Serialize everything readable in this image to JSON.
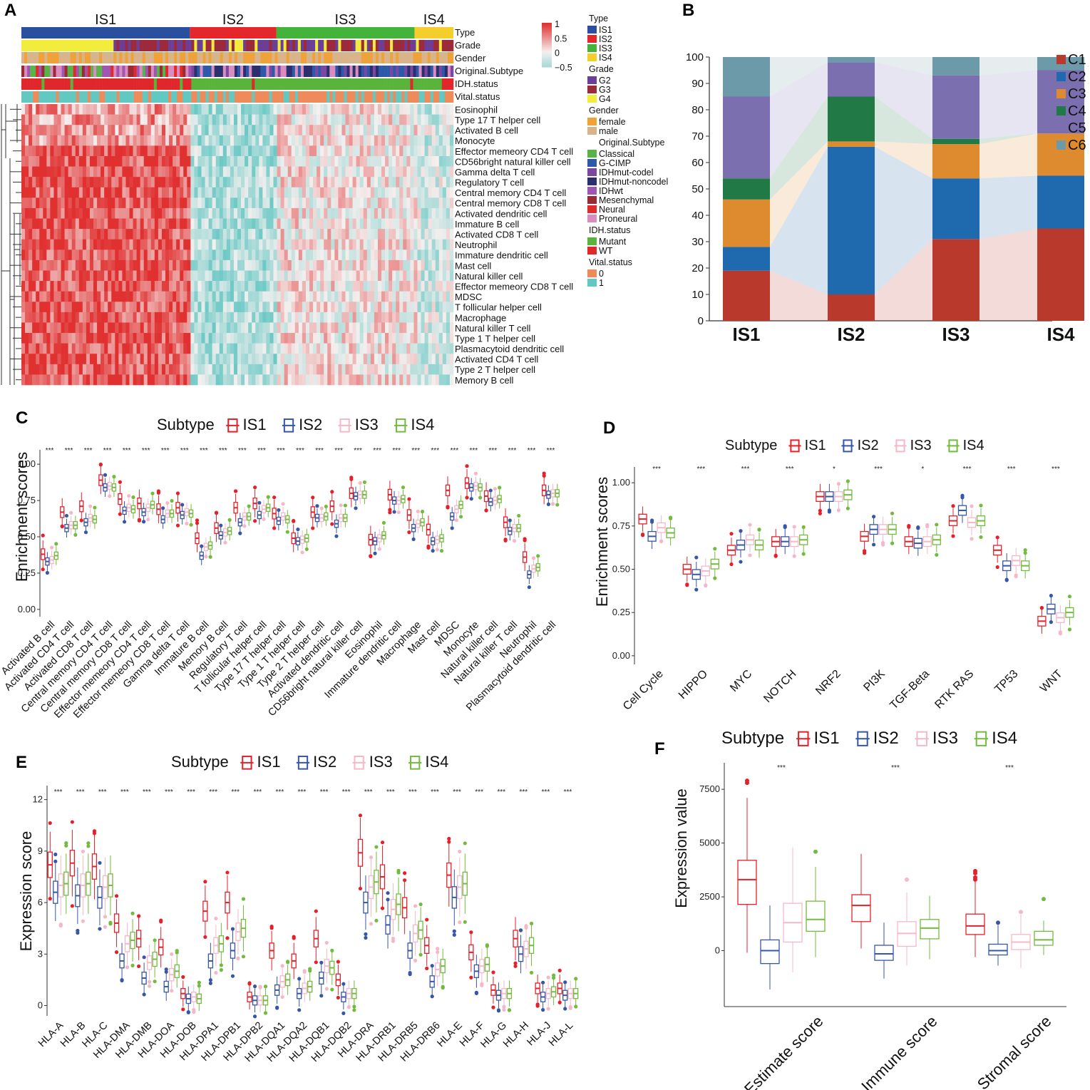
{
  "panels": {
    "A": "A",
    "B": "B",
    "C": "C",
    "D": "D",
    "E": "E",
    "F": "F"
  },
  "colors": {
    "IS1": "#e5202a",
    "IS2": "#3656a6",
    "IS3": "#f5b8c8",
    "IS4": "#72bb3f",
    "hm_high": "#e03030",
    "hm_mid": "#f4f0ef",
    "hm_low": "#5cc4c0"
  },
  "heatmap": {
    "groups": [
      "IS1",
      "IS2",
      "IS3",
      "IS4"
    ],
    "group_fraction": [
      0.39,
      0.2,
      0.32,
      0.09
    ],
    "group_colors": [
      "#2a4fa0",
      "#e5262b",
      "#45b23c",
      "#f4cf2b"
    ],
    "annotation_rows": [
      "Type",
      "Grade",
      "Gender",
      "Original.Subtype",
      "IDH.status",
      "Vital.status"
    ],
    "cell_rows": [
      "Eosinophil",
      "Type 17 T helper cell",
      "Activated B cell",
      "Monocyte",
      "Effector memeory CD4 T cell",
      "CD56bright natural killer cell",
      "Gamma delta T cell",
      "Regulatory T cell",
      "Central memory CD4 T cell",
      "Central memory CD8 T cell",
      "Activated dendritic cell",
      "Immature  B cell",
      "Activated CD8 T cell",
      "Neutrophil",
      "Immature dendritic cell",
      "Mast cell",
      "Natural killer cell",
      "Effector memeory CD8 T cell",
      "MDSC",
      "T follicular helper cell",
      "Macrophage",
      "Natural killer T cell",
      "Type 1 T helper cell",
      "Plasmacytoid dendritic cell",
      "Activated CD4 T cell",
      "Type 2 T helper cell",
      "Memory B cell"
    ],
    "colorbar": {
      "ticks": [
        "1",
        "0.5",
        "0",
        "−0.5"
      ]
    },
    "legend": [
      {
        "title": "Type",
        "items": [
          {
            "label": "IS1",
            "color": "#2a4fa0"
          },
          {
            "label": "IS2",
            "color": "#e5262b"
          },
          {
            "label": "IS3",
            "color": "#45b23c"
          },
          {
            "label": "IS4",
            "color": "#f4cf2b"
          }
        ]
      },
      {
        "title": "Grade",
        "items": [
          {
            "label": "G2",
            "color": "#6b3f98"
          },
          {
            "label": "G3",
            "color": "#9c2a3a"
          },
          {
            "label": "G4",
            "color": "#f2ec3c"
          }
        ]
      },
      {
        "title": "Gender",
        "items": [
          {
            "label": "female",
            "color": "#f0a23a"
          },
          {
            "label": "male",
            "color": "#d8b48a"
          }
        ]
      },
      {
        "title": "Original.Subtype",
        "items": [
          {
            "label": "Classical",
            "color": "#58b44a"
          },
          {
            "label": "G-CIMP",
            "color": "#2c5aa8"
          },
          {
            "label": "IDHmut-codel",
            "color": "#7a48a0"
          },
          {
            "label": "IDHmut-noncodel",
            "color": "#2b2f6e"
          },
          {
            "label": "IDHwt",
            "color": "#a056b0"
          },
          {
            "label": "Mesenchymal",
            "color": "#9a2b34"
          },
          {
            "label": "Neural",
            "color": "#e22a2a"
          },
          {
            "label": "Proneural",
            "color": "#d98cc0"
          }
        ]
      },
      {
        "title": "IDH.status",
        "items": [
          {
            "label": "Mutant",
            "color": "#5ab43c"
          },
          {
            "label": "WT",
            "color": "#e0282c"
          }
        ]
      },
      {
        "title": "Vital.status",
        "items": [
          {
            "label": "0",
            "color": "#ef8a5a"
          },
          {
            "label": "1",
            "color": "#62c8c2"
          }
        ]
      }
    ]
  },
  "chart_data": [
    {
      "panel": "A",
      "type": "heatmap",
      "title": "",
      "note": "Immune cell enrichment heatmap; high in IS1, low in IS2 and IS4, intermediate in IS3",
      "rows_ref": "heatmap.cell_rows",
      "group_mean_values": [
        0.8,
        -0.45,
        0.05,
        -0.25
      ]
    },
    {
      "panel": "B",
      "type": "bar",
      "stacked": true,
      "title": "",
      "categories": [
        "IS1",
        "IS2",
        "IS3",
        "IS4"
      ],
      "ylim": [
        0,
        100
      ],
      "yticks": [
        "0",
        "10",
        "20",
        "30",
        "40",
        "50",
        "60",
        "70",
        "80",
        "90",
        "100"
      ],
      "series": [
        {
          "name": "C1",
          "color": "#b93a2c",
          "values": [
            19,
            10,
            31,
            35
          ]
        },
        {
          "name": "C2",
          "color": "#1f6aae",
          "values": [
            9,
            56,
            23,
            20
          ]
        },
        {
          "name": "C3",
          "color": "#de8a2e",
          "values": [
            18,
            2,
            13,
            16
          ]
        },
        {
          "name": "C4",
          "color": "#217a46",
          "values": [
            8,
            17,
            2,
            0
          ]
        },
        {
          "name": "C5",
          "color": "#7b6fb0",
          "values": [
            31,
            13,
            24,
            24
          ]
        },
        {
          "name": "C6",
          "color": "#6d9aa8",
          "values": [
            15,
            2,
            7,
            5
          ]
        }
      ]
    },
    {
      "panel": "C",
      "type": "box",
      "title": "Subtype",
      "ylabel": "Enrichment scores",
      "ylim": [
        -0.05,
        1.05
      ],
      "yticks": [
        "0.00",
        "0.25",
        "0.50",
        "0.75",
        "1.00"
      ],
      "legend": [
        "IS1",
        "IS2",
        "IS3",
        "IS4"
      ],
      "sig": "***",
      "categories": [
        "Activated B cell",
        "Activated CD4 T cell",
        "Activated CD8 T cell",
        "Central memory CD4 T cell",
        "Central memory CD8 T cell",
        "Effector memeory CD4 T cell",
        "Effector memeory CD8 T cell",
        "Gamma delta T cell",
        "Immature  B cell",
        "Memory B cell",
        "Regulatory T cell",
        "T follicular helper cell",
        "Type 17 T helper cell",
        "Type 1 T helper cell",
        "Type 2 T helper cell",
        "Activated dendritic cell",
        "CD56bright natural killer cell",
        "Eosinophil",
        "Immature dendritic cell",
        "Macrophage",
        "Mast cell",
        "MDSC",
        "Monocyte",
        "Natural killer cell",
        "Natural killer T cell",
        "Neutrophil",
        "Plasmacytoid dendritic cell"
      ],
      "medians": [
        [
          0.38,
          0.33,
          0.34,
          0.37
        ],
        [
          0.67,
          0.56,
          0.58,
          0.58
        ],
        [
          0.71,
          0.6,
          0.63,
          0.62
        ],
        [
          0.89,
          0.84,
          0.85,
          0.84
        ],
        [
          0.76,
          0.68,
          0.7,
          0.69
        ],
        [
          0.73,
          0.67,
          0.7,
          0.72
        ],
        [
          0.69,
          0.62,
          0.66,
          0.66
        ],
        [
          0.7,
          0.65,
          0.67,
          0.66
        ],
        [
          0.49,
          0.37,
          0.43,
          0.44
        ],
        [
          0.56,
          0.51,
          0.53,
          0.54
        ],
        [
          0.7,
          0.6,
          0.64,
          0.64
        ],
        [
          0.73,
          0.65,
          0.69,
          0.7
        ],
        [
          0.66,
          0.61,
          0.64,
          0.62
        ],
        [
          0.49,
          0.47,
          0.48,
          0.49
        ],
        [
          0.67,
          0.63,
          0.63,
          0.64
        ],
        [
          0.71,
          0.59,
          0.63,
          0.63
        ],
        [
          0.8,
          0.78,
          0.79,
          0.79
        ],
        [
          0.48,
          0.47,
          0.49,
          0.51
        ],
        [
          0.79,
          0.75,
          0.75,
          0.76
        ],
        [
          0.65,
          0.56,
          0.59,
          0.6
        ],
        [
          0.55,
          0.47,
          0.48,
          0.49
        ],
        [
          0.82,
          0.64,
          0.69,
          0.72
        ],
        [
          0.87,
          0.84,
          0.85,
          0.84
        ],
        [
          0.78,
          0.74,
          0.75,
          0.76
        ],
        [
          0.6,
          0.54,
          0.56,
          0.56
        ],
        [
          0.36,
          0.24,
          0.28,
          0.29
        ],
        [
          0.82,
          0.79,
          0.8,
          0.8
        ]
      ]
    },
    {
      "panel": "D",
      "type": "box",
      "title": "Subtype",
      "ylabel": "Enrichment scores",
      "ylim": [
        -0.05,
        1.05
      ],
      "yticks": [
        "0.00",
        "0.25",
        "0.50",
        "0.75",
        "1.00"
      ],
      "legend": [
        "IS1",
        "IS2",
        "IS3",
        "IS4"
      ],
      "categories": [
        "Cell Cycle",
        "HIPPO",
        "MYC",
        "NOTCH",
        "NRF2",
        "PI3K",
        "TGF-Beta",
        "RTK RAS",
        "TP53",
        "WNT"
      ],
      "sig": [
        "***",
        "***",
        "***",
        "***",
        "*",
        "***",
        "*",
        "***",
        "***",
        "***"
      ],
      "medians": [
        [
          0.79,
          0.69,
          0.74,
          0.71
        ],
        [
          0.5,
          0.47,
          0.49,
          0.53
        ],
        [
          0.61,
          0.64,
          0.67,
          0.64
        ],
        [
          0.66,
          0.66,
          0.66,
          0.67
        ],
        [
          0.92,
          0.92,
          0.92,
          0.93
        ],
        [
          0.69,
          0.73,
          0.73,
          0.73
        ],
        [
          0.66,
          0.65,
          0.66,
          0.67
        ],
        [
          0.78,
          0.84,
          0.77,
          0.78
        ],
        [
          0.61,
          0.52,
          0.55,
          0.52
        ],
        [
          0.2,
          0.27,
          0.22,
          0.25
        ]
      ]
    },
    {
      "panel": "E",
      "type": "box",
      "title": "Subtype",
      "ylabel": "Expression score",
      "ylim": [
        -0.6,
        12.4
      ],
      "yticks": [
        "0",
        "3",
        "6",
        "9",
        "12"
      ],
      "legend": [
        "IS1",
        "IS2",
        "IS3",
        "IS4"
      ],
      "categories": [
        "HLA-A",
        "HLA-B",
        "HLA-C",
        "HLA-DMA",
        "HLA-DMB",
        "HLA-DOA",
        "HLA-DOB",
        "HLA-DPA1",
        "HLA-DPB1",
        "HLA-DPB2",
        "HLA-DQA1",
        "HLA-DQA2",
        "HLA-DQB1",
        "HLA-DQB2",
        "HLA-DRA",
        "HLA-DRB1",
        "HLA-DRB5",
        "HLA-DRB6",
        "HLA-E",
        "HLA-F",
        "HLA-G",
        "HLA-H",
        "HLA-J",
        "HLA-L"
      ],
      "sig": [
        "***",
        "***",
        "***",
        "***",
        "***",
        "***",
        "***",
        "***",
        "***",
        "***",
        "***",
        "***",
        "***",
        "***",
        "***",
        "***",
        "***",
        "***",
        "***",
        "***",
        "***",
        "***",
        "***",
        "***"
      ],
      "medians": [
        [
          8.2,
          6.6,
          7.0,
          7.1
        ],
        [
          8.3,
          6.4,
          7.0,
          7.1
        ],
        [
          8.1,
          6.3,
          6.9,
          7.0
        ],
        [
          4.8,
          2.6,
          3.6,
          3.8
        ],
        [
          3.9,
          1.6,
          2.5,
          2.7
        ],
        [
          3.4,
          1.1,
          1.8,
          2.0
        ],
        [
          0.7,
          0.4,
          0.5,
          0.4
        ],
        [
          5.5,
          2.6,
          3.5,
          3.6
        ],
        [
          6.0,
          3.2,
          4.3,
          4.5
        ],
        [
          0.5,
          0.3,
          0.3,
          0.3
        ],
        [
          3.2,
          0.9,
          1.4,
          1.5
        ],
        [
          2.6,
          0.7,
          1.0,
          1.1
        ],
        [
          3.9,
          1.6,
          2.3,
          2.2
        ],
        [
          1.5,
          0.5,
          0.7,
          0.7
        ],
        [
          8.9,
          6.0,
          6.9,
          7.2
        ],
        [
          7.5,
          4.7,
          5.6,
          5.9
        ],
        [
          5.7,
          3.2,
          4.2,
          4.4
        ],
        [
          3.5,
          1.4,
          2.1,
          2.3
        ],
        [
          7.6,
          6.3,
          6.9,
          7.1
        ],
        [
          3.1,
          2.0,
          2.3,
          2.4
        ],
        [
          0.9,
          0.6,
          0.7,
          0.7
        ],
        [
          3.9,
          3.0,
          3.3,
          3.5
        ],
        [
          1.0,
          0.5,
          0.7,
          0.8
        ],
        [
          1.0,
          0.6,
          0.7,
          0.7
        ]
      ]
    },
    {
      "panel": "F",
      "type": "box",
      "title": "Subtype",
      "ylabel": "Expression value",
      "ylim": [
        -2600,
        8400
      ],
      "yticks": [
        "0",
        "2500",
        "5000",
        "7500"
      ],
      "legend": [
        "IS1",
        "IS2",
        "IS3",
        "IS4"
      ],
      "categories": [
        "Estimate score",
        "Immune score",
        "Stromal score"
      ],
      "sig": [
        "***",
        "***",
        "***"
      ],
      "boxes": [
        [
          [
            -100,
            2150,
            3300,
            4200,
            7100
          ],
          [
            -1800,
            -600,
            0,
            500,
            2100
          ],
          [
            -1000,
            400,
            1300,
            2200,
            4800
          ],
          [
            -300,
            900,
            1450,
            2300,
            3900
          ]
        ],
        [
          [
            100,
            1350,
            2100,
            2600,
            4500
          ],
          [
            -1300,
            -450,
            -150,
            250,
            1300
          ],
          [
            -700,
            200,
            800,
            1350,
            2700
          ],
          [
            -400,
            550,
            1050,
            1450,
            2550
          ]
        ],
        [
          [
            -300,
            750,
            1150,
            1700,
            3400
          ],
          [
            -700,
            -200,
            0,
            300,
            1200
          ],
          [
            -800,
            50,
            400,
            750,
            1700
          ],
          [
            -200,
            250,
            500,
            900,
            1400
          ]
        ]
      ],
      "outliers": [
        [
          [
            7900,
            7800
          ],
          [],
          [],
          [
            4600
          ]
        ],
        [
          [],
          [],
          [
            3300
          ],
          []
        ],
        [
          [
            3700,
            3600,
            3400,
            3300
          ],
          [
            1300
          ],
          [
            1800
          ],
          [
            2400
          ]
        ]
      ]
    }
  ]
}
